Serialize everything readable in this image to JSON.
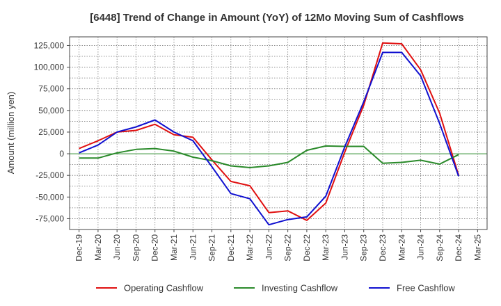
{
  "chart_data": {
    "type": "line",
    "title": "[6448]  Trend of Change in Amount (YoY) of 12Mo Moving Sum of Cashflows",
    "xlabel": "",
    "ylabel": "Amount (million yen)",
    "ylim": [
      -87500,
      135000
    ],
    "yticks": [
      125000,
      100000,
      75000,
      50000,
      25000,
      0,
      -25000,
      -50000,
      -75000
    ],
    "ytick_labels": [
      "125,000",
      "100,000",
      "75,000",
      "50,000",
      "25,000",
      "0",
      "-25,000",
      "-50,000",
      "-75,000"
    ],
    "categories": [
      "Dec-19",
      "Mar-20",
      "Jun-20",
      "Sep-20",
      "Dec-20",
      "Mar-21",
      "Jun-21",
      "Sep-21",
      "Dec-21",
      "Mar-22",
      "Jun-22",
      "Sep-22",
      "Dec-22",
      "Mar-23",
      "Jun-23",
      "Sep-23",
      "Dec-23",
      "Mar-24",
      "Jun-24",
      "Sep-24",
      "Dec-24",
      "Mar-25"
    ],
    "grid": true,
    "legend_position": "bottom",
    "series": [
      {
        "name": "Operating Cashflow",
        "color": "#e01010",
        "values": [
          6000,
          15000,
          25000,
          27000,
          34000,
          22000,
          19000,
          -7000,
          -32000,
          -37000,
          -68000,
          -66000,
          -77000,
          -57000,
          2000,
          56000,
          128000,
          127000,
          97000,
          47000,
          -25000,
          null
        ]
      },
      {
        "name": "Investing Cashflow",
        "color": "#2a8a2a",
        "values": [
          -5000,
          -5000,
          1000,
          5000,
          6000,
          3000,
          -4000,
          -8000,
          -14000,
          -16000,
          -14000,
          -10000,
          4000,
          9000,
          8500,
          8500,
          -11000,
          -10000,
          -7500,
          -12000,
          -1000,
          null
        ]
      },
      {
        "name": "Free Cashflow",
        "color": "#1010d0",
        "values": [
          1000,
          10000,
          25000,
          31000,
          39000,
          25000,
          15000,
          -15000,
          -46000,
          -52000,
          -82000,
          -76000,
          -73000,
          -49000,
          8000,
          60000,
          117000,
          117000,
          90000,
          35000,
          -26000,
          null
        ]
      }
    ]
  }
}
